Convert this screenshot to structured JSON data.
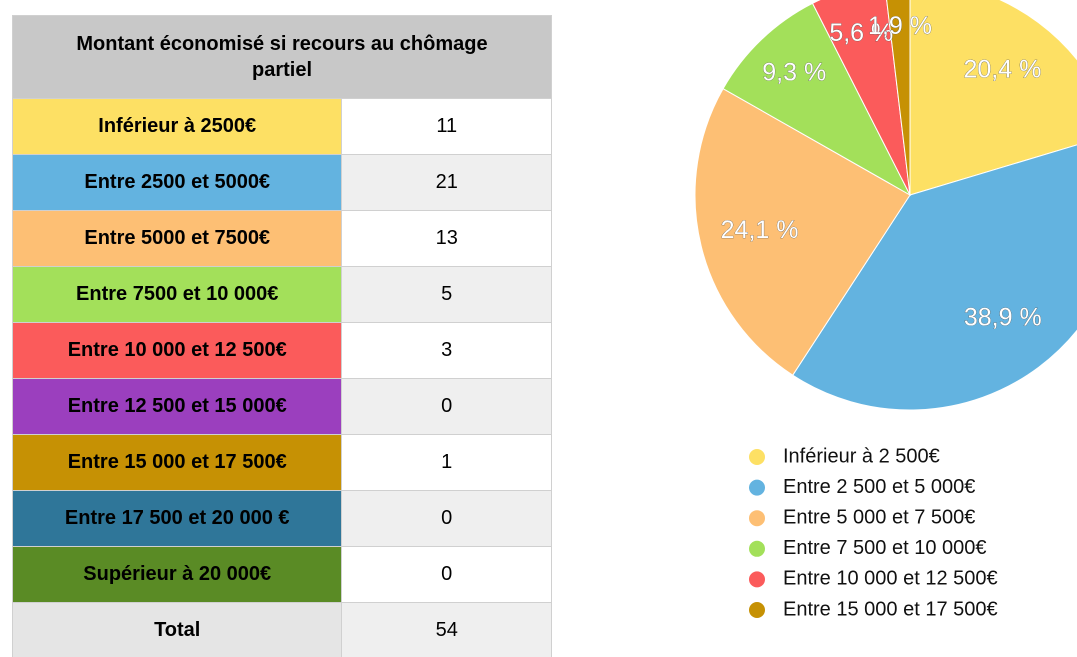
{
  "table": {
    "title": "Montant économisé si recours au chômage partiel",
    "rows": [
      {
        "label": "Inférieur à 2500€",
        "value": 11,
        "color": "#fde064"
      },
      {
        "label": "Entre 2500 et 5000€",
        "value": 21,
        "color": "#63b3e0"
      },
      {
        "label": "Entre 5000 et 7500€",
        "value": 13,
        "color": "#fdbf74"
      },
      {
        "label": "Entre 7500 et 10 000€",
        "value": 5,
        "color": "#a3e05a"
      },
      {
        "label": "Entre 10 000 et 12 500€",
        "value": 3,
        "color": "#fb5b5b"
      },
      {
        "label": "Entre 12 500 et 15 000€",
        "value": 0,
        "color": "#9b3fbe"
      },
      {
        "label": "Entre 15 000 et 17 500€",
        "value": 1,
        "color": "#c69104"
      },
      {
        "label": "Entre 17 500 et 20 000 €",
        "value": 0,
        "color": "#2f7699"
      },
      {
        "label": "Supérieur à 20 000€",
        "value": 0,
        "color": "#5a8b25"
      }
    ],
    "total": {
      "label": "Total",
      "value": 54
    }
  },
  "chart_data": {
    "type": "pie",
    "categories": [
      "Inférieur à 2 500€",
      "Entre 2 500 et 5 000€",
      "Entre 5 000 et 7 500€",
      "Entre 7 500 et 10 000€",
      "Entre 10 000 et 12 500€",
      "Entre 15 000 et 17 500€"
    ],
    "values": [
      20.4,
      38.9,
      24.1,
      9.3,
      5.6,
      1.9
    ],
    "value_labels": [
      "20,4 %",
      "38,9 %",
      "24,1 %",
      "9,3 %",
      "5,6 %",
      "1,9 %"
    ],
    "colors": [
      "#fde064",
      "#63b3e0",
      "#fdbf74",
      "#a3e05a",
      "#fb5b5b",
      "#c69104"
    ],
    "legend": "bottom"
  }
}
